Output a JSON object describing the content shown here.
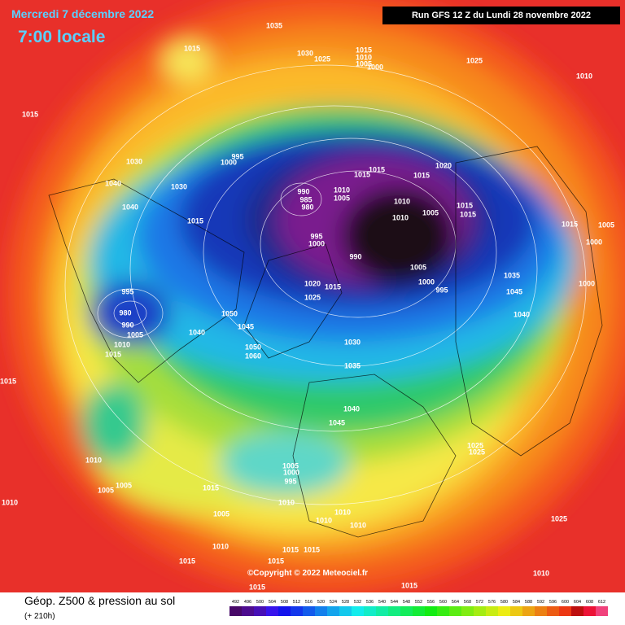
{
  "header": {
    "title": "Mercredi 7 décembre 2022",
    "time": "7:00 locale",
    "run": "Run GFS 12 Z du Lundi 28 novembre 2022"
  },
  "map": {
    "copyright": "©Copyright © 2022 Meteociel.fr",
    "pressure_labels": [
      1035,
      1015,
      1030,
      1025,
      1015,
      1010,
      1005,
      1000,
      1025,
      1010,
      1015,
      1030,
      995,
      1000,
      1040,
      1030,
      1040,
      1015,
      990,
      985,
      980,
      1010,
      1005,
      1015,
      1015,
      1015,
      1020,
      1010,
      1010,
      1005,
      1015,
      1015,
      995,
      1000,
      1015,
      1005,
      1000,
      990,
      1005,
      1000,
      995,
      1035,
      1045,
      1000,
      1020,
      1015,
      1025,
      995,
      980,
      990,
      1005,
      1050,
      1045,
      1040,
      1010,
      1015,
      1030,
      1050,
      1060,
      1035,
      1040,
      1045,
      1015,
      1025,
      1025,
      1010,
      1005,
      1000,
      995,
      1005,
      1005,
      1015,
      1010,
      1010,
      1005,
      1010,
      1010,
      1010,
      1015,
      1015,
      1015,
      1010,
      1025,
      1015,
      1010,
      1015,
      1015,
      1040
    ]
  },
  "footer": {
    "title": "Géop. Z500 & pression au sol",
    "lead": "(+ 210h)",
    "scale": [
      492,
      496,
      500,
      504,
      508,
      512,
      516,
      520,
      524,
      528,
      532,
      536,
      540,
      544,
      548,
      552,
      556,
      560,
      564,
      568,
      572,
      576,
      580,
      584,
      588,
      592,
      596,
      600,
      604,
      608,
      612
    ]
  }
}
